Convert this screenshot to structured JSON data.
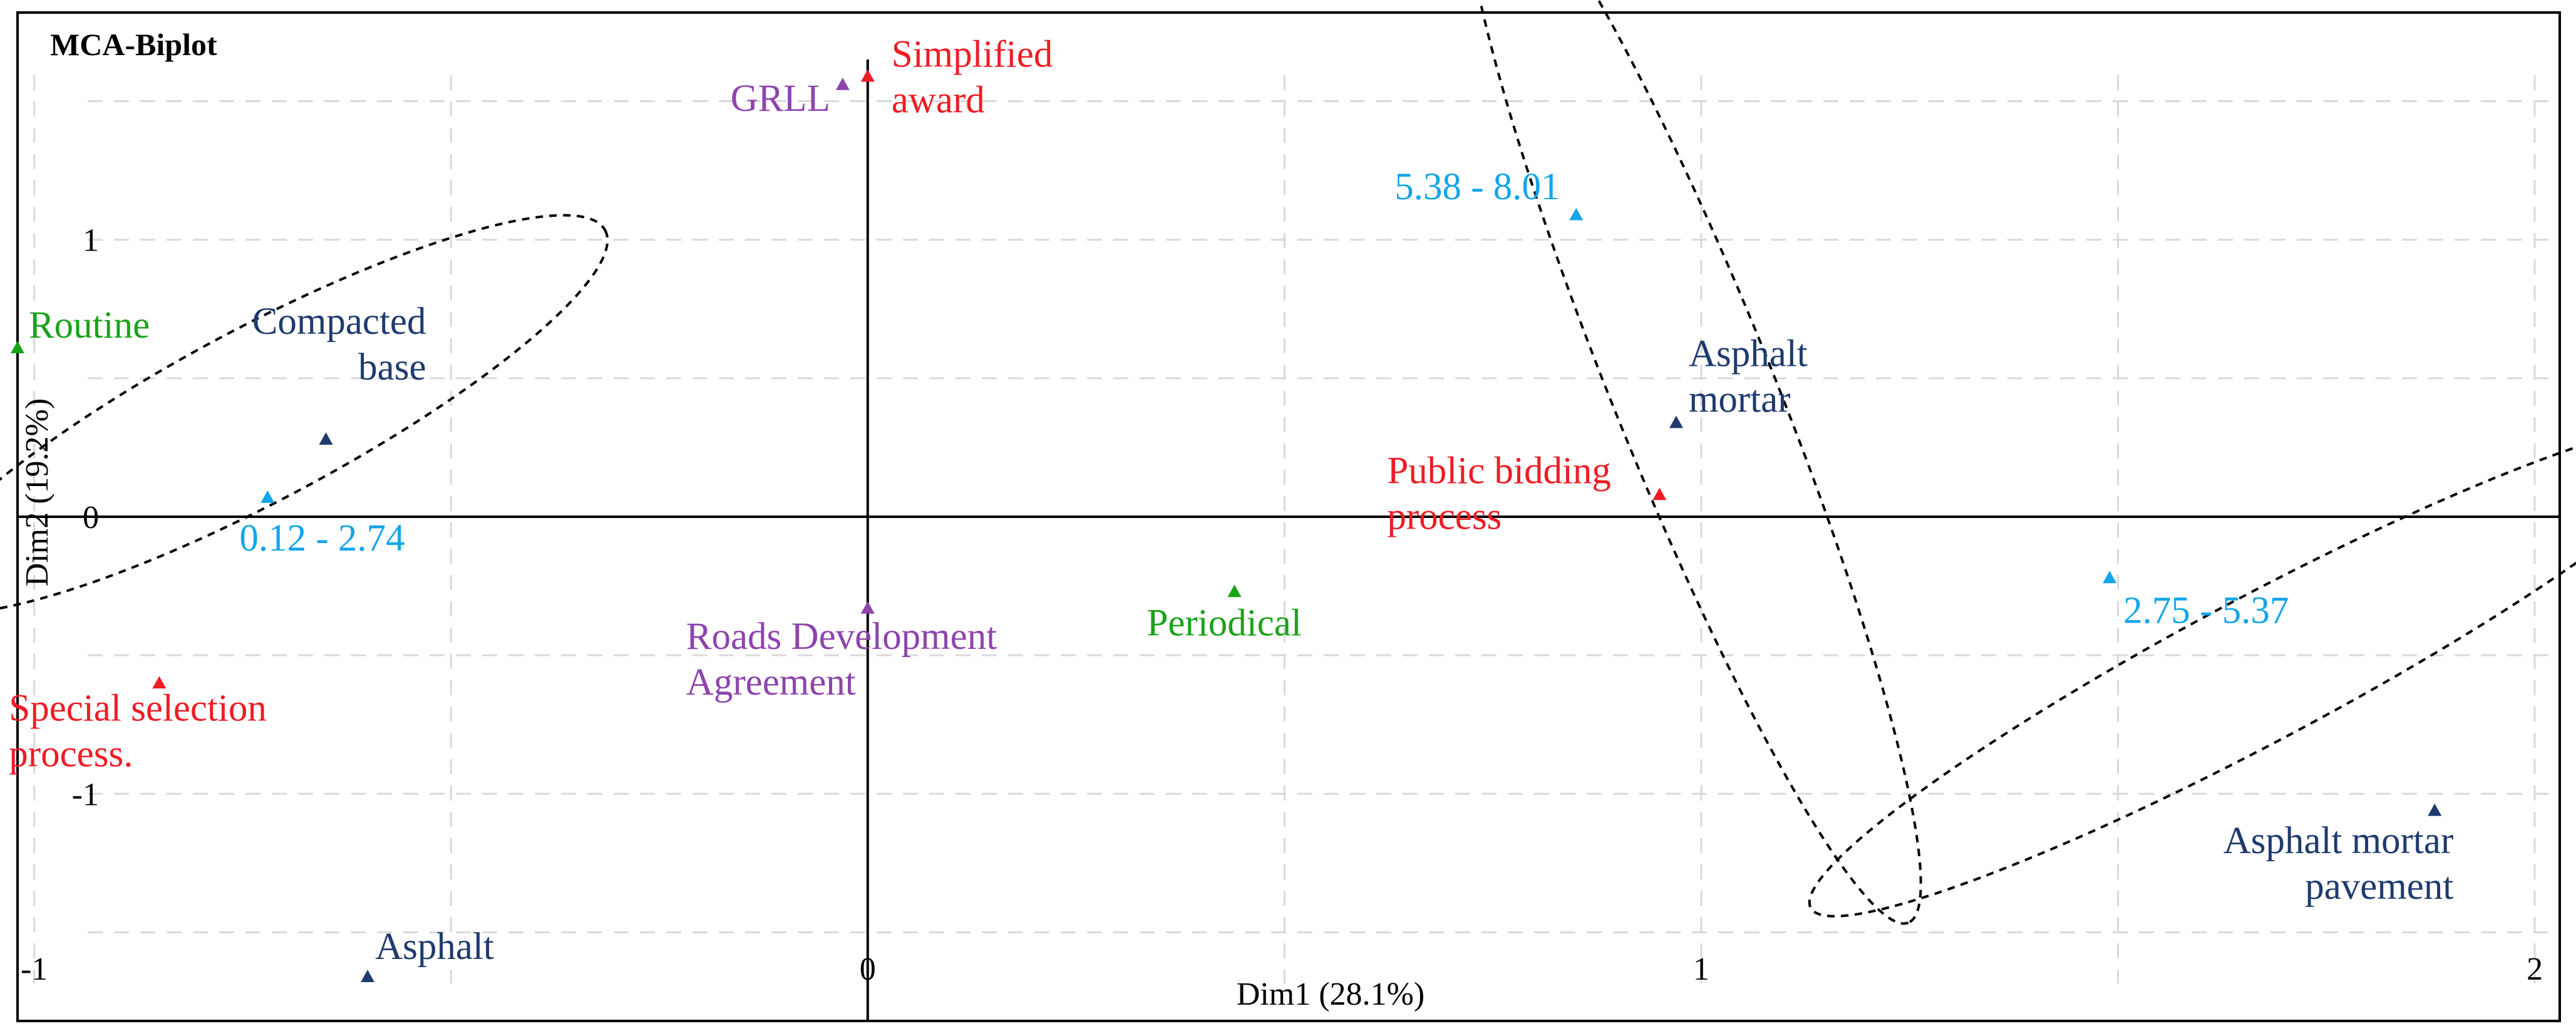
{
  "chart_data": {
    "type": "scatter",
    "title": "MCA-Biplot",
    "xlabel": "Dim1 (28.1%)",
    "ylabel": "Dim2 (19.2%)",
    "xlim": [
      -1.02,
      2.03
    ],
    "ylim": [
      -1.82,
      1.82
    ],
    "xticks": [
      -1,
      0,
      1,
      2
    ],
    "yticks": [
      -1,
      0,
      1
    ],
    "grid": true,
    "colors": {
      "green": "#19a319",
      "navy": "#1f3a6e",
      "red": "#ee1c25",
      "purple": "#8e44ad",
      "cyan": "#12a5ea"
    },
    "points": [
      {
        "label": "Routine",
        "label_lines": [
          "Routine"
        ],
        "x": -1.02,
        "y": 0.61,
        "color": "#19a319"
      },
      {
        "label": "Compacted base",
        "label_lines": [
          "Compacted",
          "base"
        ],
        "x": -0.65,
        "y": 0.28,
        "color": "#1f3a6e"
      },
      {
        "label": "0.12 - 2.74",
        "label_lines": [
          "0.12 - 2.74"
        ],
        "x": -0.72,
        "y": 0.07,
        "color": "#12a5ea"
      },
      {
        "label": "Special selection process.",
        "label_lines": [
          "Special selection",
          "process."
        ],
        "x": -0.85,
        "y": -0.6,
        "color": "#ee1c25"
      },
      {
        "label": "Asphalt",
        "label_lines": [
          "Asphalt"
        ],
        "x": -0.6,
        "y": -1.66,
        "color": "#1f3a6e"
      },
      {
        "label": "GRLL",
        "label_lines": [
          "GRLL"
        ],
        "x": -0.03,
        "y": 1.56,
        "color": "#8e44ad"
      },
      {
        "label": "Simplified award",
        "label_lines": [
          "Simplified",
          "award"
        ],
        "x": 0.0,
        "y": 1.59,
        "color": "#ee1c25"
      },
      {
        "label": "Roads Development Agreement",
        "label_lines": [
          "Roads Development",
          "Agreement"
        ],
        "x": 0.0,
        "y": -0.33,
        "color": "#8e44ad"
      },
      {
        "label": "Periodical",
        "label_lines": [
          "Periodical"
        ],
        "x": 0.44,
        "y": -0.27,
        "color": "#19a319"
      },
      {
        "label": "5.38 - 8.01",
        "label_lines": [
          "5.38 - 8.01"
        ],
        "x": 0.85,
        "y": 1.09,
        "color": "#12a5ea"
      },
      {
        "label": "Asphalt mortar",
        "label_lines": [
          "Asphalt",
          "mortar"
        ],
        "x": 0.97,
        "y": 0.34,
        "color": "#1f3a6e"
      },
      {
        "label": "Public bidding process",
        "label_lines": [
          "Public bidding",
          "process"
        ],
        "x": 0.95,
        "y": 0.08,
        "color": "#ee1c25"
      },
      {
        "label": "2.75 - 5.37",
        "label_lines": [
          "2.75 - 5.37"
        ],
        "x": 1.49,
        "y": -0.22,
        "color": "#12a5ea"
      },
      {
        "label": "Asphalt mortar pavement",
        "label_lines": [
          "Asphalt mortar",
          "pavement"
        ],
        "x": 1.88,
        "y": -1.06,
        "color": "#1f3a6e"
      }
    ],
    "ellipses": [
      {
        "name": "cluster-low",
        "cx": -0.73,
        "cy": 0.37,
        "rx": 0.47,
        "ry": 0.31,
        "angle": -28
      },
      {
        "name": "cluster-high",
        "cx": 0.99,
        "cy": 0.46,
        "rx": 0.69,
        "ry": 0.29,
        "angle": 68
      },
      {
        "name": "cluster-mid",
        "cx": 1.67,
        "cy": -0.55,
        "rx": 0.61,
        "ry": 0.26,
        "angle": -28
      }
    ]
  }
}
